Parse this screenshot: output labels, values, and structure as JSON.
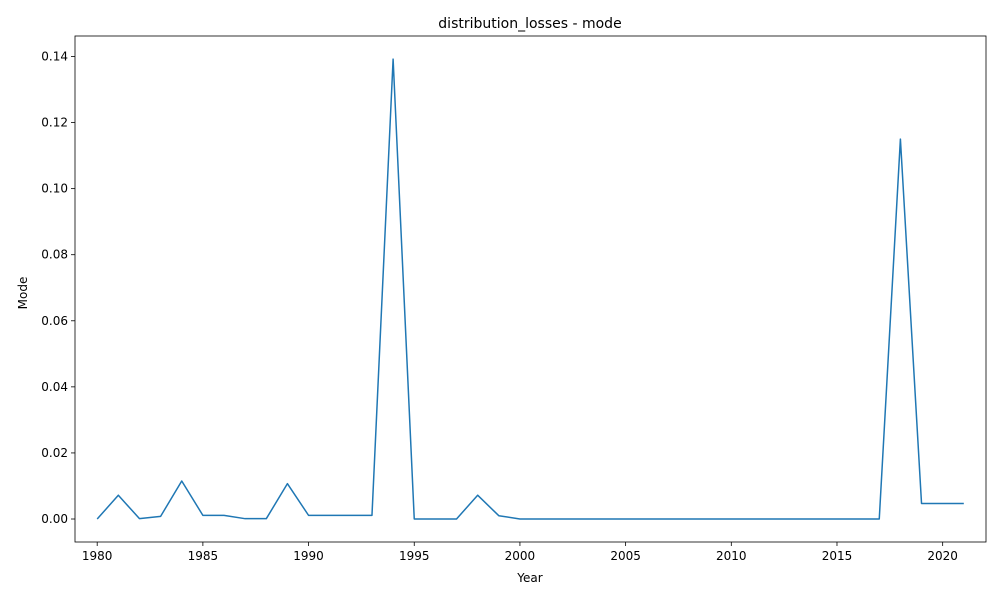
{
  "chart_data": {
    "type": "line",
    "title": "distribution_losses - mode",
    "xlabel": "Year",
    "ylabel": "Mode",
    "xlim": [
      1978.95,
      2022.05
    ],
    "ylim": [
      -0.00696,
      0.1462
    ],
    "x_ticks": [
      1980,
      1985,
      1990,
      1995,
      2000,
      2005,
      2010,
      2015,
      2020
    ],
    "y_ticks": [
      0.0,
      0.02,
      0.04,
      0.06,
      0.08,
      0.1,
      0.12,
      0.14
    ],
    "x_tick_labels": [
      "1980",
      "1985",
      "1990",
      "1995",
      "2000",
      "2005",
      "2010",
      "2015",
      "2020"
    ],
    "y_tick_labels": [
      "0.00",
      "0.02",
      "0.04",
      "0.06",
      "0.08",
      "0.10",
      "0.12",
      "0.14"
    ],
    "grid": false,
    "series": [
      {
        "color": "#1f77b4",
        "x": [
          1980,
          1981,
          1982,
          1983,
          1984,
          1985,
          1986,
          1987,
          1988,
          1989,
          1990,
          1991,
          1992,
          1993,
          1994,
          1995,
          1996,
          1997,
          1998,
          1999,
          2000,
          2001,
          2002,
          2003,
          2004,
          2005,
          2006,
          2007,
          2008,
          2009,
          2010,
          2011,
          2012,
          2013,
          2014,
          2015,
          2016,
          2017,
          2018,
          2019,
          2020,
          2021
        ],
        "y": [
          0.0,
          0.0072,
          0.0001,
          0.0008,
          0.0115,
          0.0011,
          0.0011,
          0.0001,
          0.0001,
          0.0107,
          0.0011,
          0.0011,
          0.0011,
          0.0011,
          0.1392,
          0.0,
          0.0,
          0.0,
          0.0072,
          0.001,
          0.0,
          0.0,
          0.0,
          0.0,
          0.0,
          0.0,
          0.0,
          0.0,
          0.0,
          0.0,
          0.0,
          0.0,
          0.0,
          0.0,
          0.0,
          0.0,
          0.0,
          0.0,
          0.115,
          0.0047,
          0.0047,
          0.0047
        ]
      }
    ]
  }
}
